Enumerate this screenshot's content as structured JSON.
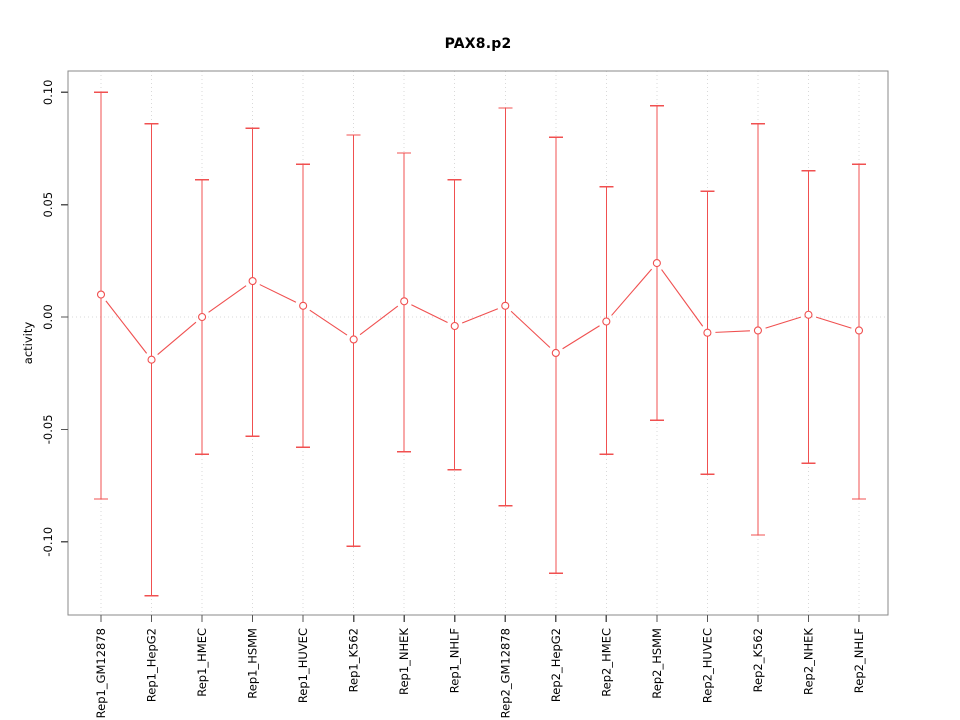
{
  "chart_data": {
    "type": "line",
    "subtype": "points-with-error-bars",
    "title": "PAX8.p2",
    "xlabel": "",
    "ylabel": "activity",
    "categories": [
      "Rep1_GM12878",
      "Rep1_HepG2",
      "Rep1_HMEC",
      "Rep1_HSMM",
      "Rep1_HUVEC",
      "Rep1_K562",
      "Rep1_NHEK",
      "Rep1_NHLF",
      "Rep2_GM12878",
      "Rep2_HepG2",
      "Rep2_HMEC",
      "Rep2_HSMM",
      "Rep2_HUVEC",
      "Rep2_K562",
      "Rep2_NHEK",
      "Rep2_NHLF"
    ],
    "series": [
      {
        "name": "activity",
        "values": [
          0.01,
          -0.019,
          0.0,
          0.016,
          0.005,
          -0.01,
          0.007,
          -0.004,
          0.005,
          -0.016,
          -0.002,
          0.024,
          -0.007,
          -0.006,
          0.001,
          -0.006
        ],
        "upper": [
          0.1,
          0.086,
          0.061,
          0.084,
          0.068,
          0.081,
          0.073,
          0.061,
          0.093,
          0.08,
          0.058,
          0.094,
          0.056,
          0.086,
          0.065,
          0.068
        ],
        "lower": [
          -0.081,
          -0.124,
          -0.061,
          -0.053,
          -0.058,
          -0.102,
          -0.06,
          -0.068,
          -0.084,
          -0.114,
          -0.061,
          -0.046,
          -0.07,
          -0.097,
          -0.065,
          -0.081
        ]
      }
    ],
    "yticks": {
      "values": [
        0.1,
        0.05,
        0.0,
        -0.05,
        -0.1
      ],
      "labels": [
        "0.10",
        "0.05",
        "0.00",
        "-0.05",
        "-0.10"
      ]
    },
    "ylim": [
      -0.133,
      0.11
    ],
    "grid": {
      "vertical": "dotted line at every category",
      "horizontal": "dotted line at zero only"
    },
    "legend": "none",
    "colors": {
      "series": "#f05050",
      "grid": "#d9d9d9",
      "frame": "#8a8a8a",
      "tick": "#555555",
      "text": "#000000",
      "background": "#ffffff"
    }
  }
}
